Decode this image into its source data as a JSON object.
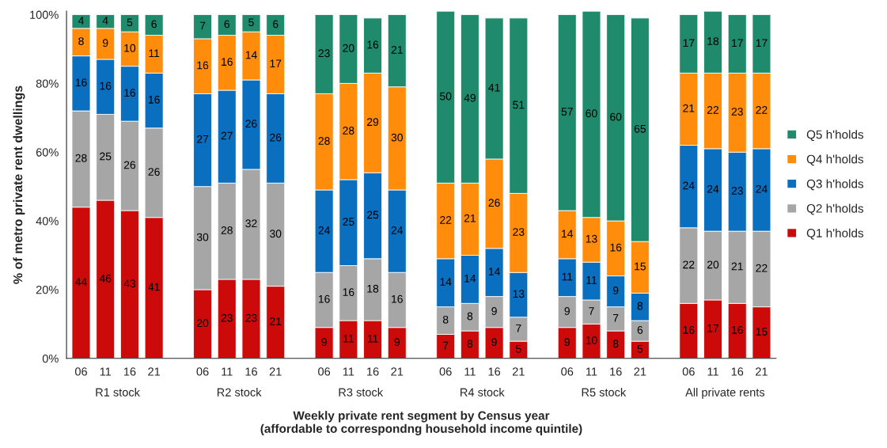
{
  "chart_data": {
    "type": "bar",
    "stacked": true,
    "ylabel": "% of metro private rent dwellings",
    "xlabel": "Weekly private rent segment by Census year\n(affordable to correspondng household income quintile)",
    "categories": [
      "06",
      "11",
      "16",
      "21",
      null,
      "06",
      "11",
      "16",
      "21",
      null,
      "06",
      "11",
      "16",
      "21",
      null,
      "06",
      "11",
      "16",
      "21",
      null,
      "06",
      "11",
      "16",
      "21",
      null,
      "06",
      "11",
      "16",
      "21"
    ],
    "annotations": [
      "R1 stock",
      "R2 stock",
      "R3 stock",
      "R4 stock",
      "R5 stock",
      "All private rents"
    ],
    "series": [
      {
        "name": "Q1 h'holds",
        "color": "#cc0a0a",
        "values": [
          44,
          46,
          43,
          41,
          null,
          20,
          23,
          23,
          21,
          null,
          9,
          11,
          11,
          9,
          null,
          7,
          8,
          9,
          5,
          null,
          9,
          10,
          8,
          5,
          null,
          16,
          17,
          16,
          15
        ]
      },
      {
        "name": "Q2 h'holds",
        "color": "#a6a6a6",
        "values": [
          28,
          25,
          26,
          26,
          null,
          30,
          28,
          32,
          30,
          null,
          16,
          16,
          18,
          16,
          null,
          8,
          8,
          9,
          7,
          null,
          9,
          7,
          7,
          6,
          null,
          22,
          20,
          21,
          22
        ]
      },
      {
        "name": "Q3 h'holds",
        "color": "#0b6fc0",
        "values": [
          16,
          16,
          16,
          16,
          null,
          27,
          27,
          26,
          26,
          null,
          24,
          25,
          25,
          24,
          null,
          14,
          14,
          14,
          13,
          null,
          11,
          11,
          9,
          8,
          null,
          24,
          24,
          23,
          24
        ]
      },
      {
        "name": "Q4 h'holds",
        "color": "#ff8c0a",
        "values": [
          8,
          9,
          10,
          11,
          null,
          16,
          16,
          14,
          17,
          null,
          28,
          28,
          29,
          30,
          null,
          22,
          21,
          26,
          23,
          null,
          14,
          13,
          16,
          15,
          null,
          21,
          22,
          23,
          22
        ]
      },
      {
        "name": "Q5 h'holds",
        "color": "#1f8a6c",
        "values": [
          4,
          4,
          5,
          6,
          null,
          7,
          6,
          5,
          6,
          null,
          23,
          20,
          16,
          21,
          null,
          50,
          49,
          41,
          51,
          null,
          57,
          60,
          60,
          65,
          null,
          17,
          18,
          17,
          17
        ]
      }
    ],
    "data_labels": true,
    "legend": "right",
    "grid": false,
    "ylim": [
      0,
      101
    ],
    "yticks": [
      {
        "value": 0,
        "label": "0%"
      },
      {
        "value": 20,
        "label": "20%"
      },
      {
        "value": 40,
        "label": "40%"
      },
      {
        "value": 60,
        "label": "60%"
      },
      {
        "value": 80,
        "label": "80%"
      },
      {
        "value": 100,
        "label": "100%"
      }
    ]
  }
}
